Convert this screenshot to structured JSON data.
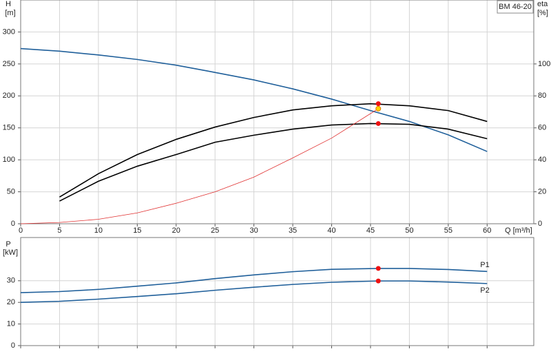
{
  "chart_data": [
    {
      "type": "line",
      "badge": "BM 46-20",
      "y_label": "H",
      "y_unit": "[m]",
      "y2_label": "eta",
      "y2_unit": "[%]",
      "x_label": "Q [m³/h]",
      "xlim": [
        0,
        66
      ],
      "xticks": [
        0,
        5,
        10,
        15,
        20,
        25,
        30,
        35,
        40,
        45,
        50,
        55,
        60
      ],
      "ylim": [
        0,
        350
      ],
      "yticks": [
        0,
        50,
        100,
        150,
        200,
        250,
        300
      ],
      "y2lim": [
        0,
        140
      ],
      "y2ticks": [
        0,
        20,
        40,
        60,
        80,
        100
      ],
      "grid": true,
      "series": [
        {
          "color": "#1f5f9a",
          "x": [
            0,
            5,
            10,
            15,
            20,
            24,
            30,
            35,
            40,
            45,
            50,
            55,
            60
          ],
          "values": [
            274,
            270,
            264,
            257,
            248,
            239,
            225,
            211,
            195,
            177,
            160,
            139,
            113
          ]
        },
        {
          "color": "#000000",
          "axis": "y2",
          "x": [
            5,
            10,
            15,
            20,
            25,
            30,
            35,
            40,
            45,
            50,
            55,
            60
          ],
          "values": [
            16.7,
            31.3,
            43.3,
            52.8,
            60.5,
            66.5,
            71.2,
            73.8,
            75.1,
            73.8,
            70.8,
            64
          ]
        },
        {
          "color": "#000000",
          "axis": "y2",
          "x": [
            5,
            10,
            15,
            20,
            25,
            30,
            35,
            40,
            45,
            50,
            55,
            60
          ],
          "values": [
            14.2,
            26.6,
            36,
            43.3,
            51,
            55.4,
            59.2,
            61.8,
            62.7,
            62.2,
            59.2,
            53.2
          ]
        },
        {
          "color": "#e03030",
          "x": [
            0,
            5,
            10,
            15,
            20,
            25,
            30,
            35,
            40,
            46
          ],
          "values": [
            0,
            2,
            7,
            17,
            32,
            50,
            73,
            103,
            134,
            180
          ]
        }
      ],
      "points": [
        {
          "x": 46,
          "y": 75.1,
          "axis": "y2",
          "color": "#ee1111"
        },
        {
          "x": 46,
          "y": 62.7,
          "axis": "y2",
          "color": "#ee1111"
        },
        {
          "x": 46,
          "y": 180,
          "color": "#ffd200"
        }
      ]
    },
    {
      "type": "line",
      "y_label": "P",
      "y_unit": "[kW]",
      "xlim": [
        0,
        66
      ],
      "xticks": [
        0,
        5,
        10,
        15,
        20,
        25,
        30,
        35,
        40,
        45,
        50,
        55,
        60
      ],
      "ylim": [
        0,
        50
      ],
      "yticks": [
        0,
        10,
        20,
        30
      ],
      "grid": true,
      "series": [
        {
          "name": "P1",
          "color": "#1f5f9a",
          "x": [
            0,
            5,
            10,
            15,
            20,
            25,
            30,
            35,
            40,
            46,
            50,
            55,
            60
          ],
          "values": [
            24.5,
            25,
            26,
            27.5,
            29,
            31,
            32.7,
            34.2,
            35.3,
            35.7,
            35.7,
            35.2,
            34.3
          ]
        },
        {
          "name": "P2",
          "color": "#1f5f9a",
          "x": [
            0,
            5,
            10,
            15,
            20,
            25,
            30,
            35,
            40,
            46,
            50,
            55,
            60
          ],
          "values": [
            20,
            20.5,
            21.5,
            22.7,
            24,
            25.6,
            27,
            28.3,
            29.3,
            29.9,
            29.9,
            29.4,
            28.7
          ]
        }
      ],
      "points": [
        {
          "x": 46,
          "y": 35.7,
          "color": "#ee1111"
        },
        {
          "x": 46,
          "y": 29.9,
          "color": "#ee1111"
        }
      ]
    }
  ]
}
